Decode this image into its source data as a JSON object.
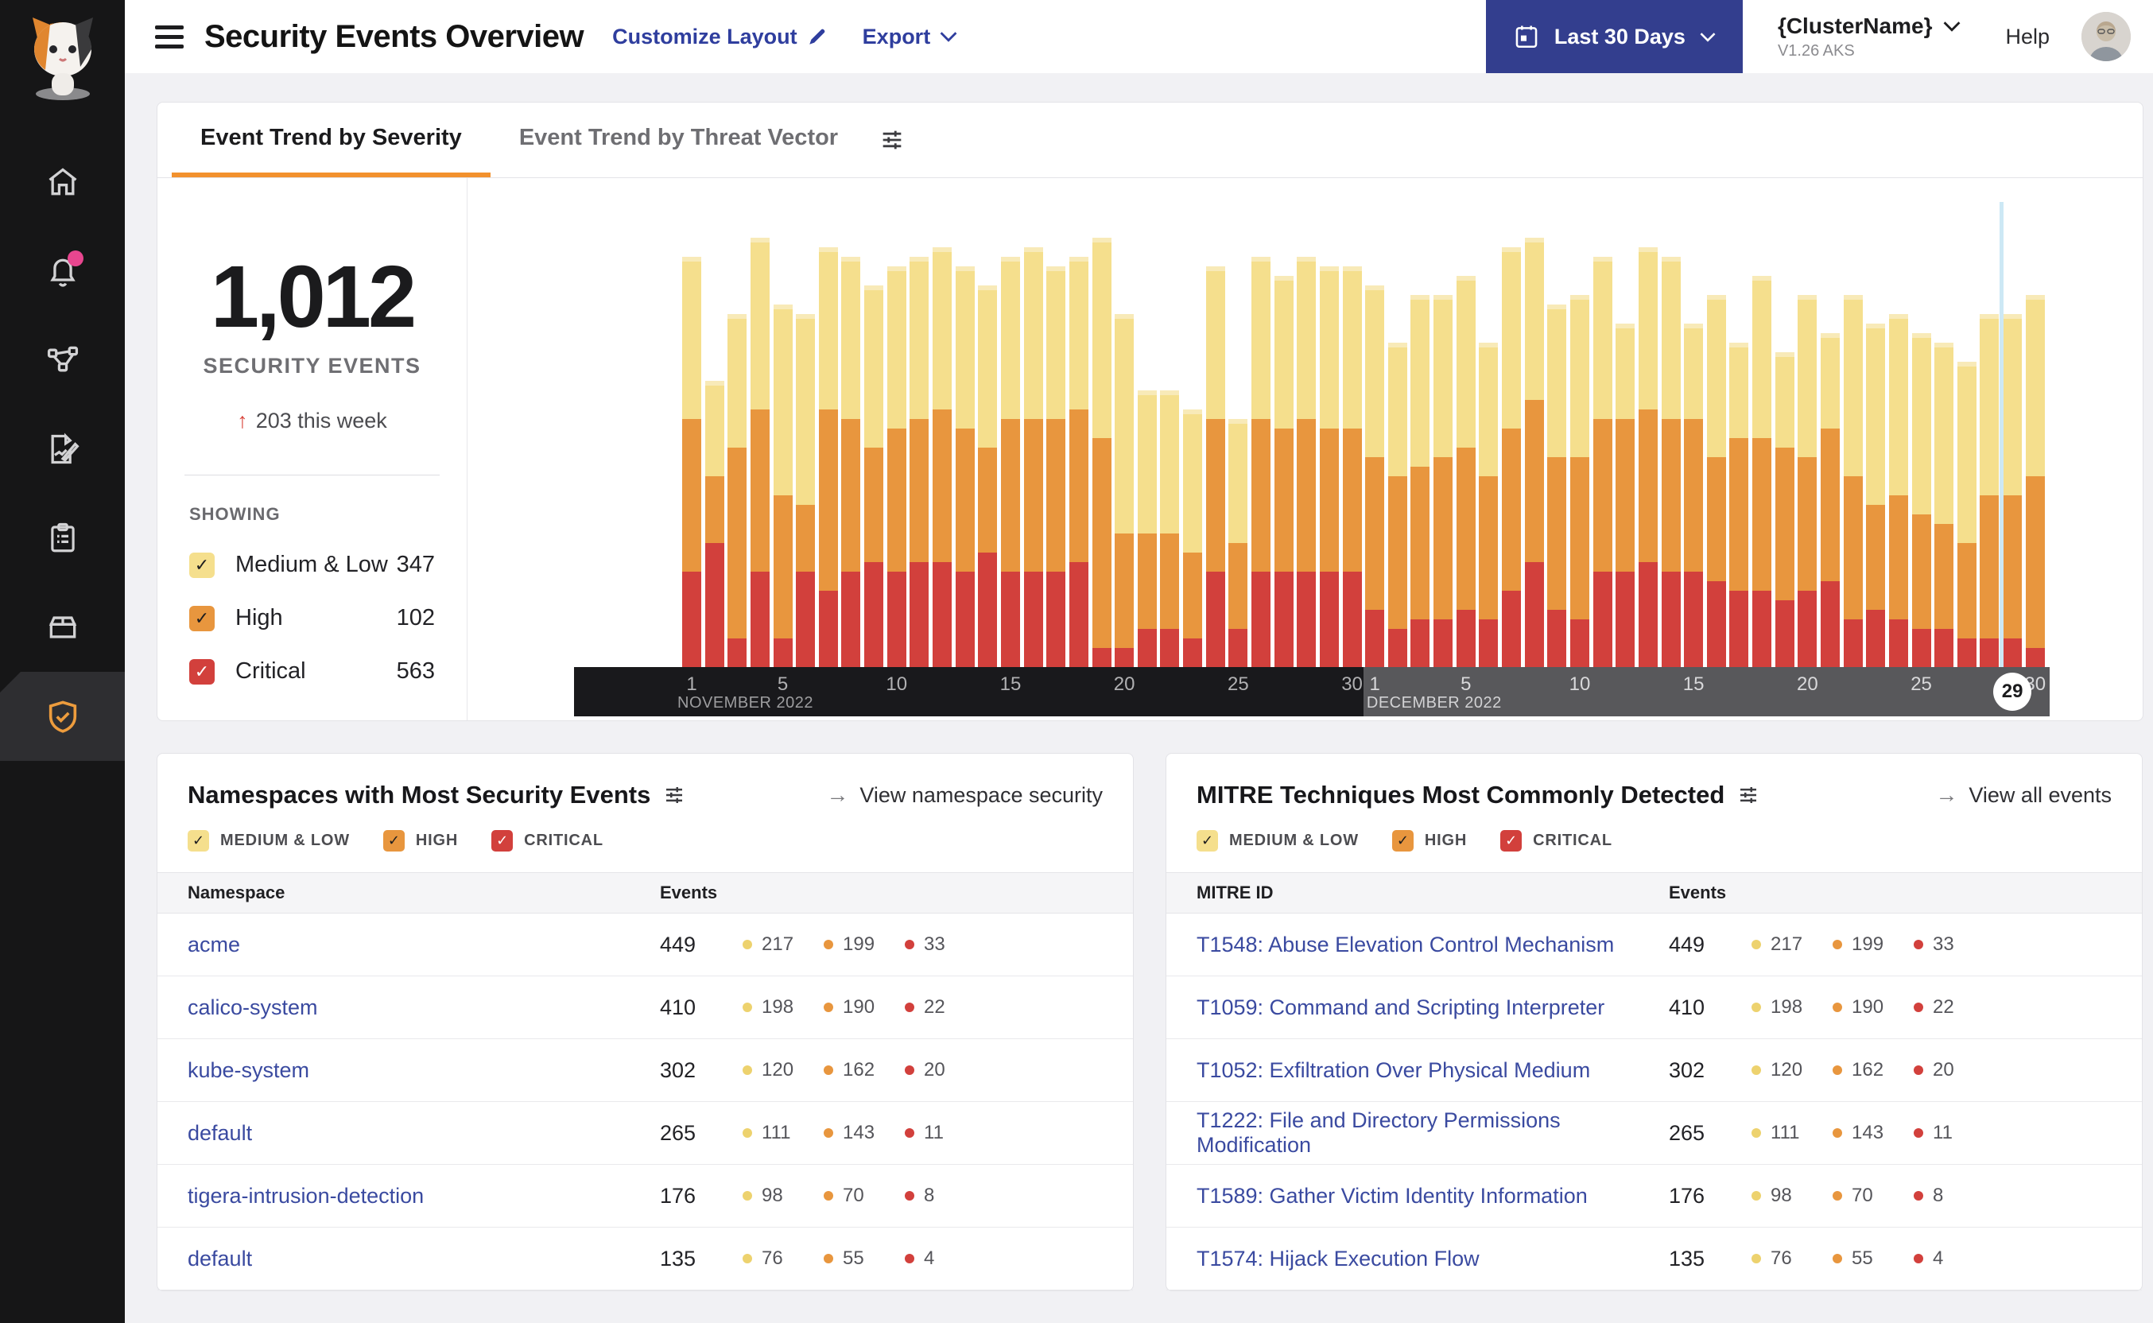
{
  "colors": {
    "medium_low": "#F5DF8D",
    "medium_low_cap": "#F8EAB8",
    "high": "#E8963E",
    "critical": "#D2403C",
    "accent_orange": "#F2912D",
    "link_blue": "#2F3E9E",
    "row_link_blue": "#3A4AA0",
    "date_button_bg": "#333E8E",
    "axis_november_bg": "#19191C",
    "axis_december_bg": "#58585B",
    "highlight_line": "#CDE8F5",
    "notification_pink": "#E8468F",
    "delta_arrow_red": "#D9453C"
  },
  "header": {
    "title": "Security Events Overview",
    "customize_label": "Customize Layout",
    "export_label": "Export",
    "date_range_label": "Last 30 Days",
    "cluster_name": "{ClusterName}",
    "cluster_version": "V1.26 AKS",
    "help_label": "Help"
  },
  "severities": [
    {
      "key": "medium_low",
      "label": "MEDIUM & LOW"
    },
    {
      "key": "high",
      "label": "HIGH"
    },
    {
      "key": "critical",
      "label": "CRITICAL"
    }
  ],
  "trend": {
    "tabs": [
      {
        "label": "Event Trend by Severity",
        "active": true
      },
      {
        "label": "Event Trend by Threat Vector",
        "active": false
      }
    ],
    "total": "1,012",
    "total_label": "SECURITY EVENTS",
    "delta_arrow": "↑",
    "delta_text": "203 this week",
    "showing_label": "SHOWING",
    "legend": [
      {
        "key": "medium_low",
        "label": "Medium & Low",
        "count": "347"
      },
      {
        "key": "high",
        "label": "High",
        "count": "102"
      },
      {
        "key": "critical",
        "label": "Critical",
        "count": "563"
      }
    ]
  },
  "chart_data": {
    "type": "bar",
    "stacked": true,
    "note": "Daily stacked security event counts, estimated from bar heights (no y-axis labels shown)",
    "x_months": [
      {
        "label": "NOVEMBER 2022",
        "days": 30,
        "ticks": [
          1,
          5,
          10,
          15,
          20,
          25,
          30
        ]
      },
      {
        "label": "DECEMBER 2022",
        "days": 30,
        "ticks": [
          1,
          5,
          10,
          15,
          20,
          25,
          30
        ],
        "highlight_day": 29
      }
    ],
    "series": [
      {
        "name": "Critical",
        "color_key": "critical",
        "values": [
          10,
          13,
          3,
          10,
          3,
          10,
          8,
          10,
          11,
          10,
          11,
          11,
          10,
          12,
          10,
          10,
          10,
          11,
          2,
          2,
          4,
          4,
          3,
          10,
          4,
          10,
          10,
          10,
          10,
          10,
          6,
          4,
          5,
          5,
          6,
          5,
          8,
          11,
          6,
          5,
          10,
          10,
          11,
          10,
          10,
          9,
          8,
          8,
          7,
          8,
          9,
          5,
          6,
          5,
          4,
          4,
          3,
          3,
          3,
          2
        ]
      },
      {
        "name": "High",
        "color_key": "high",
        "values": [
          16,
          7,
          20,
          17,
          15,
          7,
          19,
          16,
          12,
          15,
          15,
          16,
          15,
          11,
          16,
          16,
          16,
          16,
          22,
          12,
          10,
          10,
          9,
          16,
          9,
          16,
          15,
          16,
          15,
          15,
          16,
          16,
          16,
          17,
          17,
          15,
          17,
          17,
          16,
          17,
          16,
          16,
          16,
          16,
          16,
          13,
          16,
          16,
          16,
          14,
          16,
          15,
          11,
          13,
          12,
          11,
          10,
          15,
          15,
          18
        ]
      },
      {
        "name": "Medium & Low",
        "color_key": "medium_low",
        "values": [
          17,
          10,
          14,
          18,
          20,
          20,
          17,
          17,
          17,
          17,
          17,
          17,
          17,
          17,
          17,
          18,
          16,
          16,
          21,
          23,
          15,
          15,
          15,
          16,
          13,
          17,
          16,
          17,
          17,
          17,
          18,
          14,
          18,
          17,
          18,
          14,
          19,
          17,
          16,
          17,
          17,
          10,
          17,
          17,
          10,
          17,
          10,
          17,
          10,
          17,
          10,
          19,
          19,
          19,
          19,
          19,
          19,
          19,
          19,
          19
        ]
      }
    ]
  },
  "namespaces_card": {
    "title": "Namespaces with Most Security Events",
    "link_label": "View namespace security",
    "columns": [
      "Namespace",
      "Events"
    ],
    "rows": [
      {
        "name": "acme",
        "total": "449",
        "medium_low": "217",
        "high": "199",
        "critical": "33"
      },
      {
        "name": "calico-system",
        "total": "410",
        "medium_low": "198",
        "high": "190",
        "critical": "22"
      },
      {
        "name": "kube-system",
        "total": "302",
        "medium_low": "120",
        "high": "162",
        "critical": "20"
      },
      {
        "name": "default",
        "total": "265",
        "medium_low": "111",
        "high": "143",
        "critical": "11"
      },
      {
        "name": "tigera-intrusion-detection",
        "total": "176",
        "medium_low": "98",
        "high": "70",
        "critical": "8"
      },
      {
        "name": "default",
        "total": "135",
        "medium_low": "76",
        "high": "55",
        "critical": "4"
      }
    ]
  },
  "mitre_card": {
    "title": "MITRE Techniques Most Commonly Detected",
    "link_label": "View all events",
    "columns": [
      "MITRE ID",
      "Events"
    ],
    "rows": [
      {
        "name": "T1548: Abuse Elevation Control Mechanism",
        "total": "449",
        "medium_low": "217",
        "high": "199",
        "critical": "33"
      },
      {
        "name": "T1059: Command and Scripting Interpreter",
        "total": "410",
        "medium_low": "198",
        "high": "190",
        "critical": "22"
      },
      {
        "name": "T1052: Exfiltration Over Physical Medium",
        "total": "302",
        "medium_low": "120",
        "high": "162",
        "critical": "20"
      },
      {
        "name": "T1222: File and Directory Permissions Modification",
        "total": "265",
        "medium_low": "111",
        "high": "143",
        "critical": "11"
      },
      {
        "name": "T1589: Gather Victim Identity Information",
        "total": "176",
        "medium_low": "98",
        "high": "70",
        "critical": "8"
      },
      {
        "name": "T1574: Hijack Execution Flow",
        "total": "135",
        "medium_low": "76",
        "high": "55",
        "critical": "4"
      }
    ]
  }
}
